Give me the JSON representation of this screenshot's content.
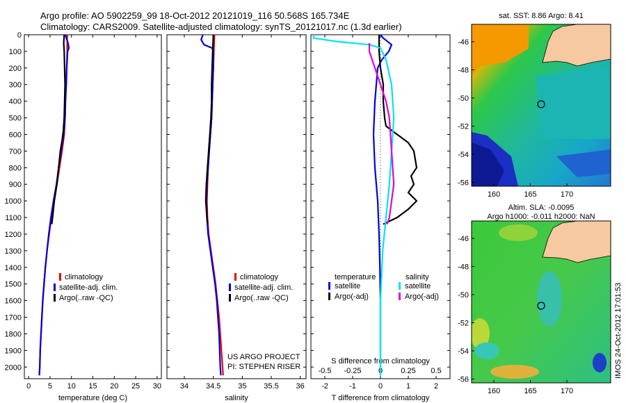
{
  "header": {
    "title_line1": "Argo profile: AO 5902259_99 18-Oct-2012 20121019_116 50.568S 165.734E",
    "title_line2": "Climatology: CARS2009. Satellite-adjusted climatology: synTS_20121017.nc (1.3d earlier)"
  },
  "colors": {
    "climatology": "#e8000b",
    "satellite": "#0000e0",
    "argo": "#000000",
    "sal_satellite": "#00e5ee",
    "sal_argo": "#e000e0"
  },
  "legends": {
    "profile": [
      "climatology",
      "satellite-adj. clim.",
      "Argo(..raw -QC)"
    ],
    "diff_temperature_title": "temperature",
    "diff_salinity_title": "salinity",
    "diff_temperature": [
      "satellite",
      "Argo(-adj)"
    ],
    "diff_salinity": [
      "satellite",
      "Argo(-adj)"
    ]
  },
  "project_note": [
    "US ARGO PROJECT",
    "PI: STEPHEN RISER"
  ],
  "maps": {
    "sst_title": "sat. SST: 8.86  Argo: 8.41",
    "sla_title_line1": "Altim. SLA: -0.0095",
    "sla_title_line2": "Argo h1000: -0.011  h2000: NaN",
    "ytick_labels": [
      "-46",
      "-48",
      "-50",
      "-52",
      "-54",
      "-56"
    ],
    "xtick_labels": [
      "160",
      "165",
      "170"
    ],
    "argo_location": {
      "lon": 165.734,
      "lat": -50.568
    },
    "watermark": "IMOS 24-Oct-2012 17:01:53"
  },
  "chart_data": [
    {
      "type": "line",
      "xlabel": "temperature (deg C)",
      "ylabel": "",
      "xlim": [
        -1,
        31
      ],
      "ylim": [
        2070,
        0
      ],
      "xticks": [
        0,
        5,
        10,
        15,
        20,
        25,
        30
      ],
      "yticks": [
        0,
        100,
        200,
        300,
        400,
        500,
        600,
        700,
        800,
        900,
        1000,
        1100,
        1200,
        1300,
        1400,
        1500,
        1600,
        1700,
        1800,
        1900,
        2000
      ],
      "legend_position": "lower-right",
      "series": [
        {
          "name": "climatology",
          "color": "#e8000b",
          "points": [
            [
              9.0,
              0
            ],
            [
              9.0,
              100
            ],
            [
              8.9,
              200
            ],
            [
              8.7,
              300
            ],
            [
              8.6,
              400
            ],
            [
              8.5,
              500
            ],
            [
              8.3,
              600
            ],
            [
              7.8,
              700
            ],
            [
              7.2,
              800
            ],
            [
              6.6,
              900
            ],
            [
              5.9,
              1000
            ],
            [
              5.3,
              1100
            ],
            [
              4.8,
              1200
            ],
            [
              4.3,
              1300
            ],
            [
              3.9,
              1400
            ],
            [
              3.6,
              1500
            ],
            [
              3.3,
              1600
            ],
            [
              3.1,
              1700
            ],
            [
              2.9,
              1800
            ],
            [
              2.7,
              1900
            ],
            [
              2.6,
              2000
            ],
            [
              2.5,
              2050
            ]
          ]
        },
        {
          "name": "satellite-adj. clim.",
          "color": "#0000e0",
          "points": [
            [
              8.6,
              0
            ],
            [
              8.8,
              20
            ],
            [
              9.2,
              50
            ],
            [
              9.4,
              80
            ],
            [
              9.1,
              100
            ],
            [
              8.9,
              200
            ],
            [
              8.8,
              300
            ],
            [
              8.6,
              400
            ],
            [
              8.5,
              500
            ],
            [
              8.2,
              600
            ],
            [
              7.6,
              700
            ],
            [
              7.0,
              800
            ],
            [
              6.5,
              900
            ],
            [
              5.8,
              1000
            ],
            [
              5.2,
              1100
            ],
            [
              4.7,
              1200
            ],
            [
              4.3,
              1300
            ],
            [
              3.9,
              1400
            ],
            [
              3.6,
              1500
            ],
            [
              3.3,
              1600
            ],
            [
              3.1,
              1700
            ],
            [
              2.9,
              1800
            ],
            [
              2.7,
              1900
            ],
            [
              2.6,
              2000
            ],
            [
              2.5,
              2050
            ]
          ]
        },
        {
          "name": "Argo(..raw -QC)",
          "color": "#000000",
          "points": [
            [
              8.3,
              0
            ],
            [
              8.2,
              50
            ],
            [
              8.3,
              100
            ],
            [
              8.4,
              200
            ],
            [
              8.5,
              300
            ],
            [
              8.4,
              400
            ],
            [
              8.3,
              500
            ],
            [
              8.1,
              580
            ],
            [
              7.8,
              640
            ],
            [
              7.4,
              700
            ],
            [
              7.0,
              800
            ],
            [
              6.6,
              900
            ],
            [
              6.0,
              1000
            ],
            [
              5.6,
              1100
            ],
            [
              5.4,
              1140
            ]
          ]
        }
      ]
    },
    {
      "type": "line",
      "xlabel": "salinity",
      "ylabel": "",
      "xlim": [
        33.7,
        36.1
      ],
      "ylim": [
        2070,
        0
      ],
      "xticks": [
        34,
        34.5,
        35,
        35.5,
        36
      ],
      "xtick_labels": [
        "34",
        "34.5",
        "35",
        "35.5",
        "36"
      ],
      "legend_position": "lower-right",
      "series": [
        {
          "name": "climatology",
          "color": "#e8000b",
          "points": [
            [
              34.52,
              0
            ],
            [
              34.51,
              100
            ],
            [
              34.5,
              200
            ],
            [
              34.49,
              300
            ],
            [
              34.48,
              400
            ],
            [
              34.47,
              500
            ],
            [
              34.45,
              600
            ],
            [
              34.43,
              700
            ],
            [
              34.41,
              800
            ],
            [
              34.4,
              900
            ],
            [
              34.39,
              1000
            ],
            [
              34.4,
              1100
            ],
            [
              34.42,
              1200
            ],
            [
              34.46,
              1300
            ],
            [
              34.5,
              1400
            ],
            [
              34.54,
              1500
            ],
            [
              34.57,
              1600
            ],
            [
              34.6,
              1700
            ],
            [
              34.62,
              1800
            ],
            [
              34.64,
              1900
            ],
            [
              34.66,
              2000
            ],
            [
              34.67,
              2050
            ]
          ]
        },
        {
          "name": "satellite-adj. clim.",
          "color": "#0000e0",
          "points": [
            [
              34.32,
              0
            ],
            [
              34.29,
              30
            ],
            [
              34.34,
              60
            ],
            [
              34.48,
              80
            ],
            [
              34.5,
              100
            ],
            [
              34.5,
              200
            ],
            [
              34.49,
              300
            ],
            [
              34.48,
              400
            ],
            [
              34.47,
              500
            ],
            [
              34.45,
              600
            ],
            [
              34.43,
              700
            ],
            [
              34.41,
              800
            ],
            [
              34.39,
              900
            ],
            [
              34.38,
              1000
            ],
            [
              34.39,
              1100
            ],
            [
              34.41,
              1200
            ],
            [
              34.45,
              1300
            ],
            [
              34.49,
              1400
            ],
            [
              34.53,
              1500
            ],
            [
              34.56,
              1600
            ],
            [
              34.58,
              1700
            ],
            [
              34.6,
              1800
            ],
            [
              34.61,
              1900
            ],
            [
              34.62,
              2000
            ],
            [
              34.63,
              2050
            ]
          ]
        },
        {
          "name": "Argo(..raw -QC)",
          "color": "#000000",
          "points": [
            [
              34.5,
              0
            ],
            [
              34.49,
              100
            ],
            [
              34.48,
              200
            ],
            [
              34.47,
              300
            ],
            [
              34.47,
              400
            ],
            [
              34.46,
              500
            ],
            [
              34.44,
              600
            ],
            [
              34.42,
              700
            ],
            [
              34.4,
              800
            ],
            [
              34.38,
              900
            ],
            [
              34.37,
              1000
            ],
            [
              34.39,
              1100
            ],
            [
              34.4,
              1140
            ]
          ]
        }
      ]
    },
    {
      "type": "line",
      "xlabel": "T difference from climatology",
      "xlabel_top": "S difference from climatology",
      "xlim": [
        -2.5,
        2.5
      ],
      "ylim": [
        2070,
        0
      ],
      "xticks": [
        -2,
        -1,
        0,
        1,
        2
      ],
      "xtick_labels": [
        "-2",
        "-1",
        "0",
        "1",
        "2"
      ],
      "s_xticks": [
        -0.5,
        -0.25,
        0,
        0.25,
        0.5
      ],
      "s_xtick_labels": [
        "-0.5",
        "-0.25",
        "0",
        "0.25",
        "0.5"
      ],
      "s_scale_per_T_unit": 0.25,
      "legend_position": "lower-center",
      "series": [
        {
          "name": "satellite",
          "variable": "temperature",
          "color": "#0000e0",
          "points": [
            [
              0,
              0
            ],
            [
              0.1,
              20
            ],
            [
              0.4,
              60
            ],
            [
              0.3,
              100
            ],
            [
              0.05,
              150
            ],
            [
              -0.1,
              200
            ],
            [
              -0.2,
              400
            ],
            [
              -0.25,
              600
            ],
            [
              -0.2,
              800
            ],
            [
              -0.1,
              1000
            ],
            [
              -0.05,
              1200
            ],
            [
              -0.02,
              1400
            ],
            [
              0,
              1600
            ],
            [
              0,
              1800
            ],
            [
              0,
              2000
            ],
            [
              0,
              2050
            ]
          ]
        },
        {
          "name": "Argo(-adj)",
          "variable": "temperature",
          "color": "#000000",
          "points": [
            [
              -0.05,
              0
            ],
            [
              -0.05,
              100
            ],
            [
              0,
              200
            ],
            [
              0.1,
              300
            ],
            [
              0.1,
              400
            ],
            [
              0.15,
              500
            ],
            [
              0.2,
              550
            ],
            [
              0.6,
              600
            ],
            [
              1.0,
              650
            ],
            [
              1.2,
              700
            ],
            [
              1.3,
              800
            ],
            [
              1.1,
              850
            ],
            [
              1.2,
              900
            ],
            [
              1.0,
              950
            ],
            [
              1.3,
              1000
            ],
            [
              1.0,
              1050
            ],
            [
              0.6,
              1100
            ],
            [
              0.1,
              1140
            ]
          ]
        },
        {
          "name": "satellite",
          "variable": "salinity",
          "color": "#00e5ee",
          "points": [
            [
              -0.6,
              0
            ],
            [
              -0.6,
              20
            ],
            [
              -0.4,
              40
            ],
            [
              -0.1,
              60
            ],
            [
              0,
              80
            ],
            [
              0.05,
              150
            ],
            [
              0.1,
              300
            ],
            [
              0.12,
              500
            ],
            [
              0.1,
              700
            ],
            [
              0.08,
              900
            ],
            [
              0.05,
              1100
            ],
            [
              0.02,
              1300
            ],
            [
              0,
              1600
            ],
            [
              0,
              2050
            ]
          ]
        },
        {
          "name": "Argo(-adj)",
          "variable": "salinity",
          "color": "#e000e0",
          "points": [
            [
              -0.1,
              50
            ],
            [
              -0.1,
              100
            ],
            [
              -0.05,
              200
            ],
            [
              0,
              300
            ],
            [
              0.05,
              400
            ],
            [
              0.08,
              500
            ],
            [
              0.1,
              700
            ],
            [
              0.12,
              900
            ],
            [
              0.1,
              1000
            ],
            [
              0.08,
              1100
            ],
            [
              0.06,
              1140
            ]
          ]
        }
      ]
    }
  ]
}
